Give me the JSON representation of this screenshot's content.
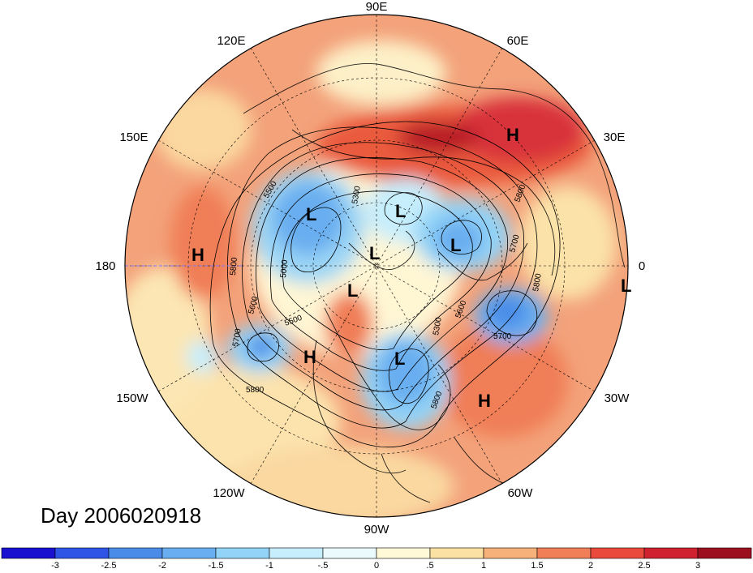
{
  "date_label": "Day 2006020918",
  "lon_labels": {
    "e90": "90E",
    "e120": "120E",
    "e60": "60E",
    "e150": "150E",
    "e30": "30E",
    "w180": "180",
    "zero": "0",
    "w150": "150W",
    "w30": "30W",
    "w120": "120W",
    "w60": "60W",
    "w90": "90W"
  },
  "pressure_marks": {
    "h_siberia": "H",
    "h_pacific": "H",
    "h_westcoast": "H",
    "h_atlantic": "H",
    "l_canada_west": "L",
    "l_arctic": "L",
    "l_center": "L",
    "l_europe": "L",
    "l_greenland": "L",
    "l_east_us": "L",
    "l_edge": "L"
  },
  "contour_labels": [
    "5500",
    "5300",
    "5800",
    "5700",
    "5000",
    "5800",
    "5600",
    "5700",
    "5500",
    "5600",
    "5300",
    "5700",
    "5800",
    "5800",
    "5800"
  ],
  "colorbar": {
    "ticks": [
      "-3",
      "-2.5",
      "-2",
      "-1.5",
      "-1",
      "-.5",
      "0",
      ".5",
      "1",
      "1.5",
      "2",
      "2.5",
      "3"
    ],
    "colors": [
      "#1a10d0",
      "#2f55e6",
      "#4a8ce8",
      "#69aef0",
      "#93d3f7",
      "#c6eefc",
      "#eafafd",
      "#fff9d8",
      "#fbe1a4",
      "#f6b07a",
      "#f07e56",
      "#ea4a3c",
      "#cf2130",
      "#9c0f1f"
    ]
  }
}
